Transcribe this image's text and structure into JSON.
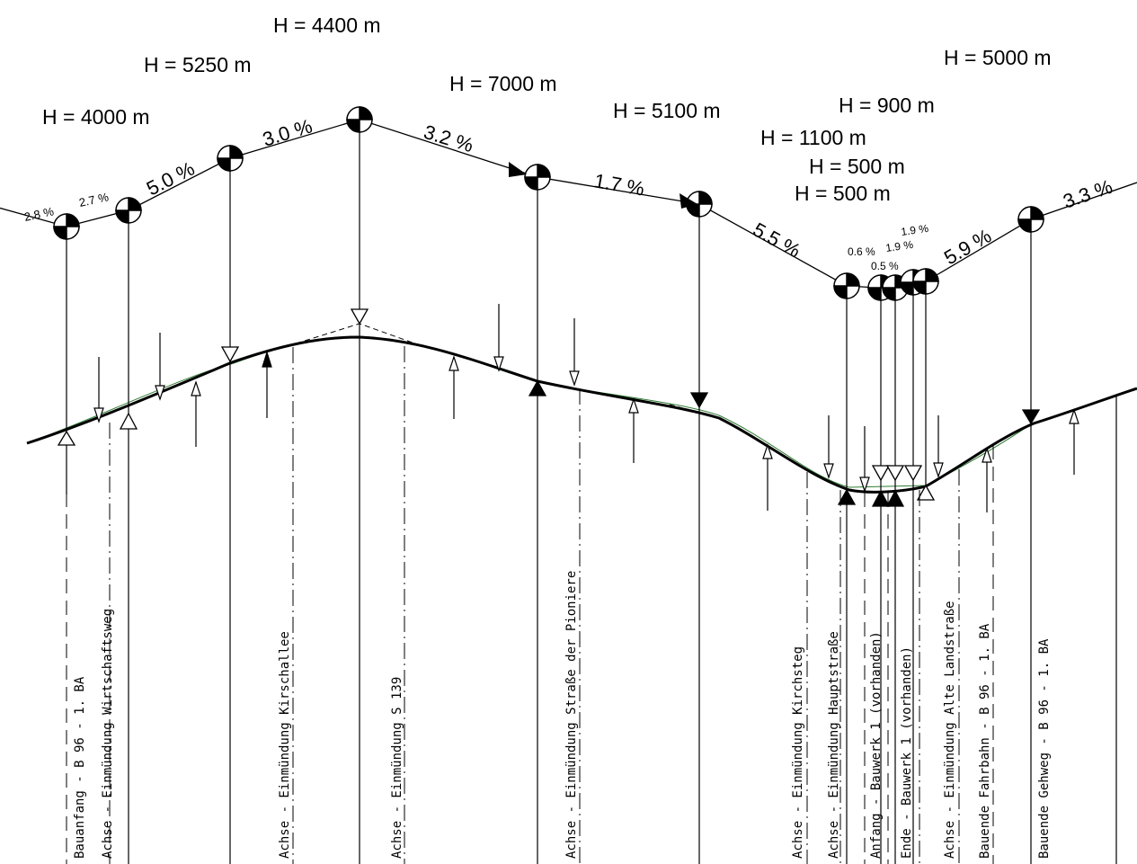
{
  "radius_labels": [
    "H = 4000 m",
    "H = 5250 m",
    "H = 4400 m",
    "H = 7000 m",
    "H = 5100 m",
    "H = 1100 m",
    "H = 900 m",
    "H = 500 m",
    "H = 500 m",
    "H = 5000 m"
  ],
  "grade_labels": [
    "2.8 %",
    "2.7 %",
    "5.0 %",
    "3.0 %",
    "3.2 %",
    "1.7 %",
    "5.5 %",
    "0.6 %",
    "0.5 %",
    "1.9 %",
    "1.9 %",
    "5.9 %",
    "3.3 %"
  ],
  "station_labels": [
    "Bauanfang - B 96 - 1. BA",
    "Achse - Einmündung Wirtschaftsweg",
    "Achse - Einmündung Kirschallee",
    "Achse - Einmündung S 139",
    "Achse - Einmündung Straße der Pioniere",
    "Achse - Einmündung Kirchsteg",
    "Achse - Einmündung Hauptstraße",
    "Anfang - Bauwerk 1 (vorhanden)",
    "Ende - Bauwerk 1 (vorhanden)",
    "Achse - Einmündung Alte Landstraße",
    "Bauende Fahrbahn - B 96 - 1. BA",
    "Bauende Gehweg - B 96 - 1. BA"
  ],
  "colors": {
    "ink": "#000000",
    "terrain": "#2e7d32",
    "background": "#ffffff"
  }
}
